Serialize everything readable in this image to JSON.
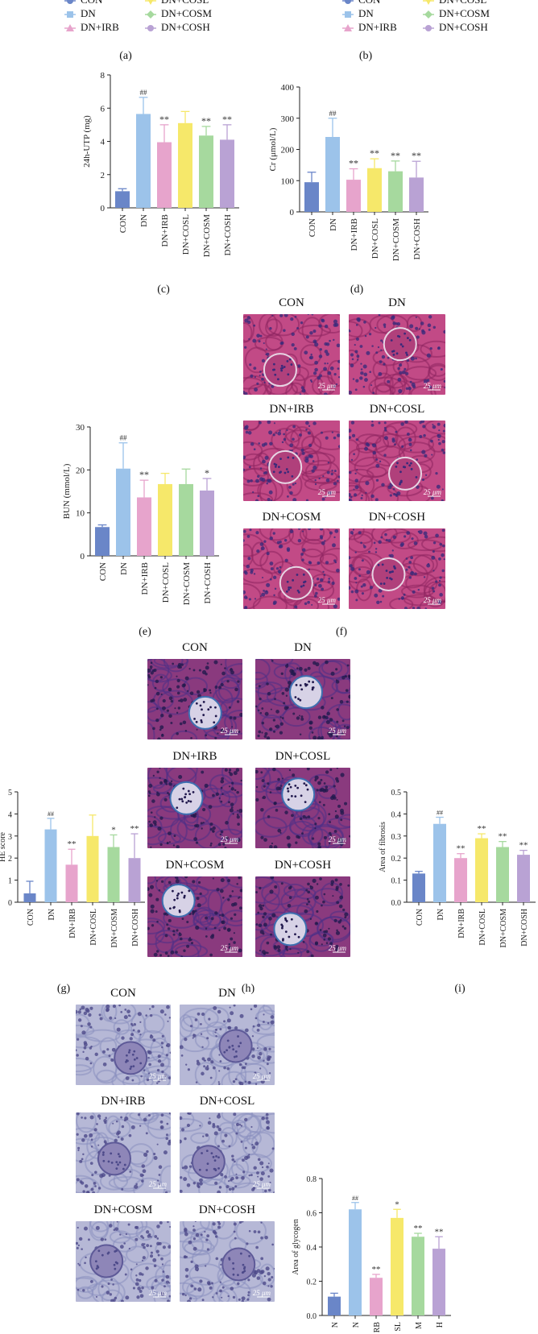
{
  "legend": {
    "items": [
      {
        "label": "CON",
        "color": "#6a86c8",
        "marker": "circle"
      },
      {
        "label": "DN",
        "color": "#9cc3ea",
        "marker": "square"
      },
      {
        "label": "DN+IRB",
        "color": "#e7a4cc",
        "marker": "triangle"
      },
      {
        "label": "DN+COSL",
        "color": "#f6e86a",
        "marker": "triangle-down"
      },
      {
        "label": "DN+COSM",
        "color": "#a6d99e",
        "marker": "diamond"
      },
      {
        "label": "DN+COSH",
        "color": "#b9a2d4",
        "marker": "circle"
      }
    ]
  },
  "panel_labels": {
    "a": "(a)",
    "b": "(b)",
    "c": "(c)",
    "d": "(d)",
    "e": "(e)",
    "f": "(f)",
    "g": "(g)",
    "h": "(h)",
    "i": "(i)"
  },
  "micrograph_groups": [
    "CON",
    "DN",
    "DN+IRB",
    "DN+COSL",
    "DN+COSM",
    "DN+COSH"
  ],
  "scale_label": "25 μm",
  "chart_data": [
    {
      "id": "c",
      "type": "bar",
      "categories": [
        "CON",
        "DN",
        "DN+IRB",
        "DN+COSL",
        "DN+COSM",
        "DN+COSH"
      ],
      "values": [
        1.0,
        5.65,
        3.95,
        5.1,
        4.35,
        4.1
      ],
      "errors": [
        0.15,
        1.0,
        1.05,
        0.7,
        0.55,
        0.9
      ],
      "annotations": [
        "",
        "##",
        "**",
        "",
        "**",
        "**"
      ],
      "ylabel": "24h-UTP (mg)",
      "xlabel": "",
      "ylim": [
        0,
        8
      ],
      "yticks": [
        0,
        2,
        4,
        6,
        8
      ],
      "colors": [
        "#6a86c8",
        "#9cc3ea",
        "#e7a4cc",
        "#f6e86a",
        "#a6d99e",
        "#b9a2d4"
      ]
    },
    {
      "id": "d",
      "type": "bar",
      "categories": [
        "CON",
        "DN",
        "DN+IRB",
        "DN+COSL",
        "DN+COSM",
        "DN+COSH"
      ],
      "values": [
        95,
        240,
        103,
        140,
        130,
        110
      ],
      "errors": [
        32,
        60,
        35,
        30,
        33,
        52
      ],
      "annotations": [
        "",
        "##",
        "**",
        "**",
        "**",
        "**"
      ],
      "ylabel": "Cr (μmol/L)",
      "xlabel": "",
      "ylim": [
        0,
        400
      ],
      "yticks": [
        0,
        100,
        200,
        300,
        400
      ],
      "colors": [
        "#6a86c8",
        "#9cc3ea",
        "#e7a4cc",
        "#f6e86a",
        "#a6d99e",
        "#b9a2d4"
      ]
    },
    {
      "id": "e",
      "type": "bar",
      "categories": [
        "CON",
        "DN",
        "DN+IRB",
        "DN+COSL",
        "DN+COSM",
        "DN+COSH"
      ],
      "values": [
        6.7,
        20.3,
        13.6,
        16.7,
        16.7,
        15.2
      ],
      "errors": [
        0.5,
        6.0,
        4.0,
        2.5,
        3.5,
        2.8
      ],
      "annotations": [
        "",
        "##",
        "**",
        "",
        "",
        "*"
      ],
      "ylabel": "BUN (mmol/L)",
      "xlabel": "",
      "ylim": [
        0,
        30
      ],
      "yticks": [
        0,
        10,
        20,
        30
      ],
      "colors": [
        "#6a86c8",
        "#9cc3ea",
        "#e7a4cc",
        "#f6e86a",
        "#a6d99e",
        "#b9a2d4"
      ]
    },
    {
      "id": "g",
      "type": "bar",
      "categories": [
        "CON",
        "DN",
        "DN+IRB",
        "DN+COSL",
        "DN+COSM",
        "DN+COSH"
      ],
      "values": [
        0.4,
        3.3,
        1.7,
        3.0,
        2.5,
        2.0
      ],
      "errors": [
        0.55,
        0.5,
        0.7,
        0.95,
        0.55,
        1.1
      ],
      "annotations": [
        "",
        "##",
        "**",
        "",
        "*",
        "**"
      ],
      "ylabel": "HE score",
      "xlabel": "",
      "ylim": [
        0,
        5
      ],
      "yticks": [
        0,
        1,
        2,
        3,
        4,
        5
      ],
      "colors": [
        "#6a86c8",
        "#9cc3ea",
        "#e7a4cc",
        "#f6e86a",
        "#a6d99e",
        "#b9a2d4"
      ]
    },
    {
      "id": "i",
      "type": "bar",
      "categories": [
        "CON",
        "DN",
        "DN+IRB",
        "DN+COSL",
        "DN+COSM",
        "DN+COSH"
      ],
      "values": [
        0.13,
        0.355,
        0.2,
        0.29,
        0.25,
        0.215
      ],
      "errors": [
        0.01,
        0.03,
        0.02,
        0.02,
        0.025,
        0.02
      ],
      "annotations": [
        "",
        "##",
        "**",
        "**",
        "**",
        "**"
      ],
      "ylabel": "Area of fibrosis",
      "xlabel": "",
      "ylim": [
        0,
        0.5
      ],
      "yticks": [
        0.0,
        0.1,
        0.2,
        0.3,
        0.4,
        0.5
      ],
      "colors": [
        "#6a86c8",
        "#9cc3ea",
        "#e7a4cc",
        "#f6e86a",
        "#a6d99e",
        "#b9a2d4"
      ]
    },
    {
      "id": "k",
      "type": "bar",
      "categories": [
        "CON",
        "DN",
        "DN+IRB",
        "DN+COSL",
        "DN+COSM",
        "DN+COSH"
      ],
      "visible_tick_labels": [
        "N",
        "N",
        "RB",
        "SL",
        "M",
        "H"
      ],
      "values": [
        0.11,
        0.62,
        0.22,
        0.57,
        0.46,
        0.39
      ],
      "errors": [
        0.02,
        0.04,
        0.02,
        0.05,
        0.02,
        0.07
      ],
      "annotations": [
        "",
        "##",
        "**",
        "*",
        "**",
        "**"
      ],
      "ylabel": "Area of glycogen",
      "xlabel": "",
      "ylim": [
        0,
        0.8
      ],
      "yticks": [
        0.0,
        0.2,
        0.4,
        0.6,
        0.8
      ],
      "colors": [
        "#6a86c8",
        "#9cc3ea",
        "#e7a4cc",
        "#f6e86a",
        "#a6d99e",
        "#b9a2d4"
      ]
    }
  ]
}
